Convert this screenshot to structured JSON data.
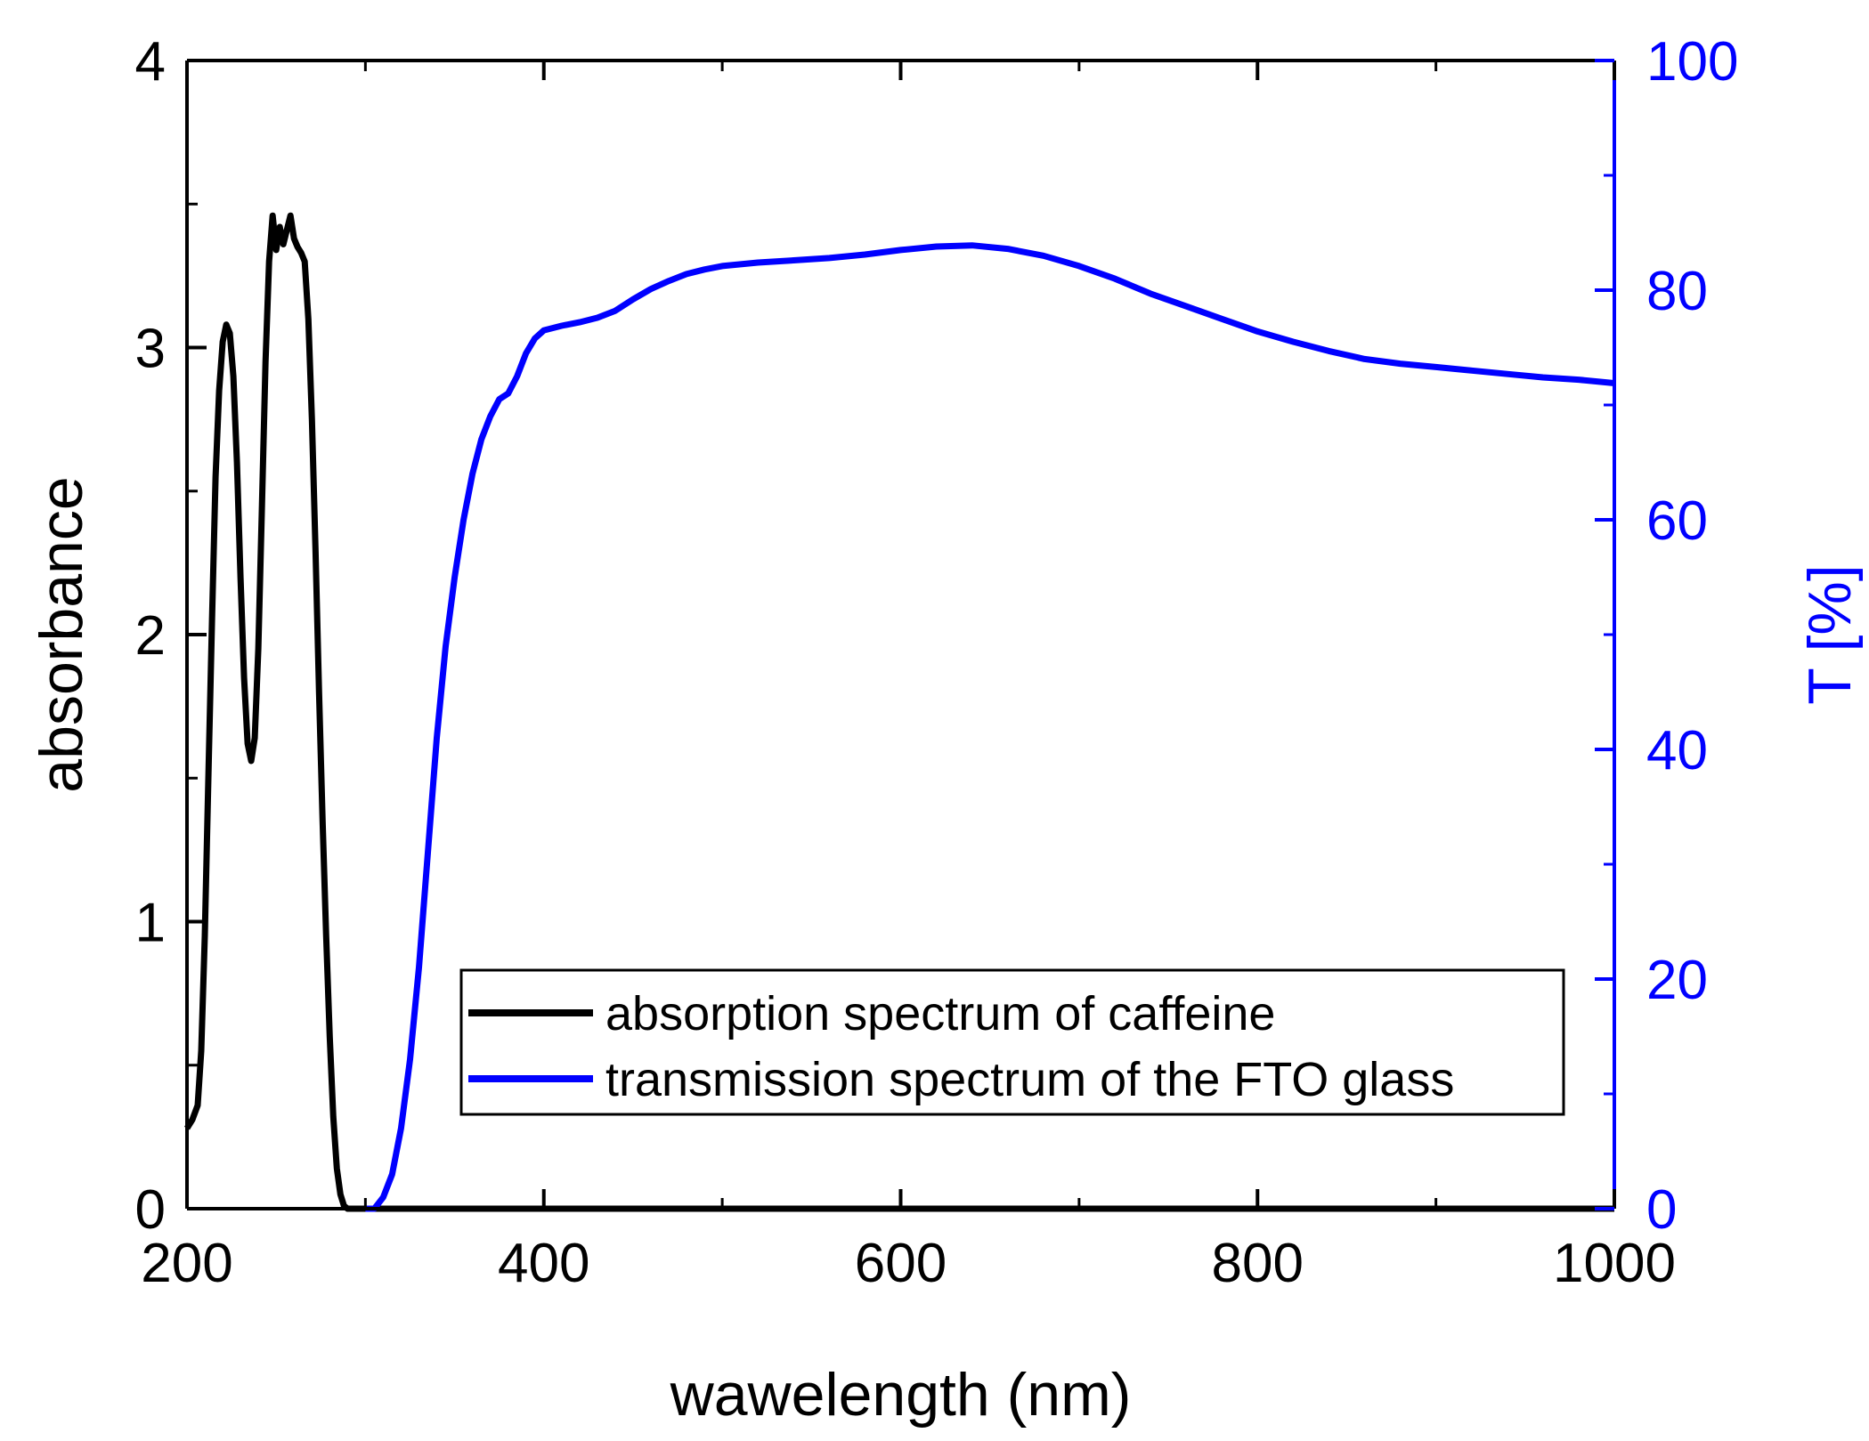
{
  "chart_data": {
    "type": "line",
    "xlabel": "wawelength (nm)",
    "ylabel": "absorbance",
    "y2label": "T [%]",
    "xlim": [
      200,
      1000
    ],
    "ylim": [
      0,
      4
    ],
    "y2lim": [
      0,
      100
    ],
    "x_ticks": [
      200,
      400,
      600,
      800,
      1000
    ],
    "y_ticks": [
      0,
      1,
      2,
      3,
      4
    ],
    "y2_ticks": [
      0,
      20,
      40,
      60,
      80,
      100
    ],
    "grid": false,
    "legend_position": "bottom-right",
    "colors": {
      "left_axis": "#000000",
      "right_axis": "#0000ff"
    },
    "series": [
      {
        "name": "absorption spectrum of caffeine",
        "axis": "left",
        "color": "#000000",
        "x": [
          200,
          203,
          206,
          208,
          210,
          212,
          214,
          216,
          218,
          220,
          222,
          224,
          226,
          228,
          230,
          232,
          234,
          236,
          238,
          240,
          242,
          244,
          246,
          248,
          250,
          252,
          254,
          256,
          258,
          260,
          262,
          264,
          266,
          268,
          270,
          272,
          274,
          276,
          278,
          280,
          282,
          284,
          286,
          288,
          290,
          292,
          294,
          296,
          298,
          300,
          302,
          304,
          306,
          308,
          310,
          1000
        ],
        "y": [
          0.28,
          0.31,
          0.36,
          0.55,
          0.95,
          1.5,
          2.05,
          2.55,
          2.85,
          3.02,
          3.08,
          3.05,
          2.9,
          2.6,
          2.2,
          1.85,
          1.62,
          1.56,
          1.64,
          1.95,
          2.45,
          2.95,
          3.3,
          3.46,
          3.34,
          3.42,
          3.36,
          3.41,
          3.46,
          3.38,
          3.35,
          3.33,
          3.3,
          3.1,
          2.75,
          2.3,
          1.8,
          1.35,
          0.95,
          0.6,
          0.32,
          0.14,
          0.05,
          0.01,
          0.0,
          0.0,
          0.0,
          0.0,
          0.0,
          0.0,
          0.0,
          0.0,
          0.0,
          0.0,
          0.0,
          0.0
        ]
      },
      {
        "name": "transmission spectrum of the FTO glass",
        "axis": "right",
        "color": "#0000ff",
        "x": [
          300,
          305,
          310,
          315,
          320,
          325,
          330,
          335,
          340,
          345,
          350,
          355,
          360,
          365,
          370,
          375,
          380,
          385,
          390,
          395,
          400,
          410,
          420,
          430,
          440,
          450,
          460,
          470,
          480,
          490,
          500,
          520,
          540,
          560,
          580,
          600,
          620,
          640,
          660,
          680,
          700,
          720,
          740,
          760,
          780,
          800,
          820,
          840,
          860,
          880,
          900,
          920,
          940,
          960,
          980,
          1000
        ],
        "y": [
          0,
          0,
          1,
          3,
          7,
          13,
          21,
          31,
          41,
          49,
          55,
          60,
          64,
          67,
          69,
          70.5,
          71,
          72.5,
          74.5,
          75.8,
          76.5,
          76.9,
          77.2,
          77.6,
          78.2,
          79.2,
          80.1,
          80.8,
          81.4,
          81.8,
          82.1,
          82.4,
          82.6,
          82.8,
          83.1,
          83.5,
          83.8,
          83.9,
          83.6,
          83.0,
          82.1,
          81.0,
          79.7,
          78.6,
          77.5,
          76.4,
          75.5,
          74.7,
          74.0,
          73.6,
          73.3,
          73.0,
          72.7,
          72.4,
          72.2,
          71.9
        ]
      }
    ]
  }
}
